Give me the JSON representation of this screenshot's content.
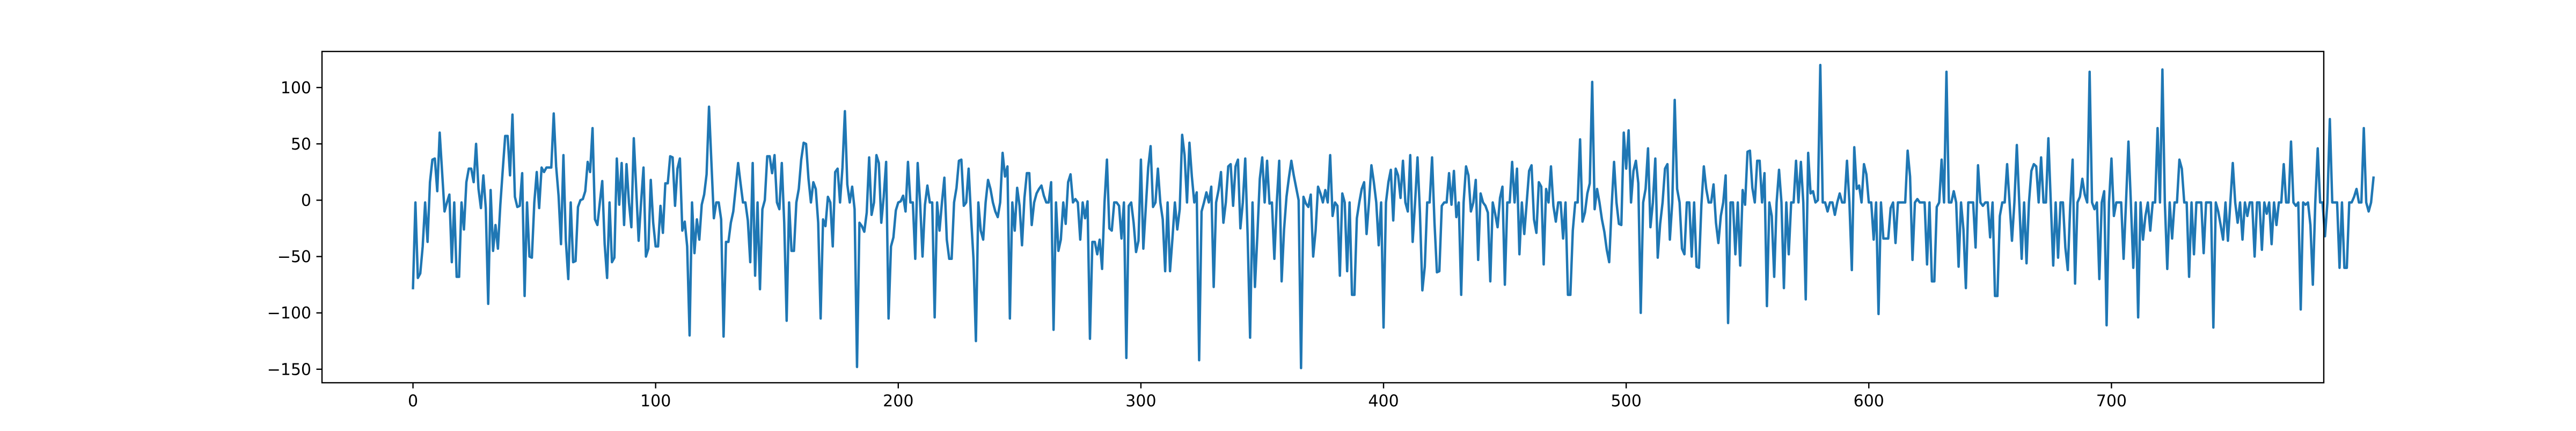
{
  "chart_data": {
    "type": "line",
    "title": "",
    "xlabel": "",
    "ylabel": "",
    "xlim": [
      -37.5,
      787.5
    ],
    "ylim": [
      -162,
      132
    ],
    "x_ticks": [
      0,
      100,
      200,
      300,
      400,
      500,
      600,
      700
    ],
    "y_ticks": [
      -150,
      -100,
      -50,
      0,
      50,
      100
    ],
    "grid": false,
    "legend": "none",
    "series": [
      {
        "color": "#1f77b4",
        "x_start": 0,
        "x_step": 1,
        "values": [
          -78,
          -2,
          -69,
          -65,
          -41,
          -2,
          -37,
          16,
          36,
          37,
          8,
          60,
          25,
          -10,
          -2,
          5,
          -55,
          -2,
          -68,
          -68,
          -2,
          -26,
          16,
          28,
          28,
          16,
          50,
          10,
          -7,
          22,
          -7,
          -92,
          9,
          -45,
          -22,
          -43,
          -4,
          27,
          57,
          57,
          22,
          76,
          3,
          -6,
          -5,
          24,
          -85,
          -2,
          -50,
          -51,
          -2,
          25,
          -7,
          29,
          25,
          29,
          29,
          29,
          77,
          30,
          4,
          -39,
          40,
          -36,
          -70,
          -2,
          -55,
          -54,
          -6,
          0,
          1,
          8,
          34,
          25,
          64,
          -17,
          -22,
          -2,
          17,
          -39,
          -69,
          -2,
          -55,
          -51,
          37,
          -4,
          33,
          -22,
          32,
          -2,
          -24,
          55,
          10,
          -36,
          -2,
          29,
          -50,
          -43,
          18,
          -20,
          -41,
          -41,
          -5,
          -29,
          15,
          15,
          39,
          38,
          -5,
          28,
          37,
          -27,
          -19,
          -41,
          -120,
          -2,
          -47,
          -17,
          -35,
          -4,
          5,
          23,
          83,
          33,
          -16,
          -2,
          -2,
          -17,
          -121,
          -37,
          -37,
          -20,
          -10,
          11,
          33,
          15,
          -2,
          -2,
          -18,
          -55,
          33,
          -67,
          -2,
          -79,
          -8,
          0,
          39,
          39,
          24,
          40,
          -2,
          -8,
          33,
          -20,
          -107,
          -2,
          -45,
          -45,
          -2,
          10,
          36,
          51,
          50,
          19,
          -2,
          16,
          10,
          -20,
          -105,
          -17,
          -23,
          3,
          -2,
          -41,
          25,
          28,
          -2,
          29,
          79,
          14,
          -2,
          12,
          -8,
          -148,
          -20,
          -23,
          -28,
          -11,
          38,
          -13,
          -2,
          40,
          33,
          -20,
          3,
          34,
          -105,
          -41,
          -33,
          -9,
          -2,
          -1,
          4,
          -10,
          34,
          -2,
          -2,
          -52,
          33,
          -2,
          -50,
          -4,
          13,
          -2,
          -2,
          -104,
          -2,
          -27,
          -2,
          20,
          -35,
          -52,
          -52,
          -2,
          11,
          35,
          36,
          -5,
          -2,
          28,
          -15,
          -52,
          -125,
          -2,
          -27,
          -35,
          -2,
          18,
          10,
          -2,
          -10,
          -15,
          -2,
          42,
          21,
          30,
          -105,
          -2,
          -27,
          11,
          -5,
          -40,
          2,
          24,
          24,
          -22,
          -2,
          6,
          10,
          13,
          4,
          -2,
          -2,
          16,
          -115,
          -2,
          -45,
          -35,
          -2,
          -21,
          16,
          23,
          -2,
          1,
          -2,
          -35,
          -2,
          -16,
          -1,
          -123,
          -37,
          -37,
          -48,
          -35,
          -61,
          -2,
          36,
          -25,
          -27,
          -2,
          -2,
          -5,
          -34,
          -2,
          -140,
          -5,
          -2,
          -20,
          -46,
          -36,
          36,
          -43,
          -7,
          29,
          48,
          -6,
          -2,
          28,
          -2,
          -17,
          -63,
          -2,
          -63,
          -34,
          -2,
          -26,
          -8,
          58,
          40,
          -2,
          51,
          21,
          -2,
          7,
          -142,
          -10,
          -2,
          7,
          -2,
          12,
          -77,
          -2,
          9,
          25,
          -20,
          -2,
          30,
          32,
          -5,
          30,
          36,
          -25,
          -2,
          37,
          -32,
          -122,
          -2,
          -77,
          -31,
          19,
          38,
          -2,
          35,
          -3,
          -2,
          -52,
          -2,
          35,
          -72,
          -26,
          3,
          20,
          35,
          22,
          11,
          0,
          -149,
          3,
          -3,
          -6,
          5,
          -50,
          -27,
          12,
          6,
          -2,
          9,
          -2,
          40,
          -14,
          -2,
          -5,
          -67,
          6,
          -2,
          -63,
          -2,
          -84,
          -84,
          -16,
          -2,
          10,
          16,
          -30,
          -2,
          31,
          16,
          -2,
          -40,
          -2,
          -113,
          -2,
          16,
          27,
          -18,
          28,
          22,
          2,
          35,
          -2,
          -10,
          40,
          -37,
          -2,
          38,
          -11,
          -80,
          -59,
          -2,
          -2,
          38,
          -20,
          -64,
          -63,
          -5,
          -2,
          -2,
          24,
          -4,
          26,
          -15,
          -2,
          -84,
          -2,
          30,
          22,
          -10,
          -2,
          18,
          -53,
          6,
          -2,
          -5,
          -11,
          -72,
          -2,
          -12,
          -24,
          2,
          12,
          -75,
          -2,
          -2,
          34,
          -2,
          28,
          -48,
          -2,
          -30,
          -2,
          26,
          31,
          -17,
          -29,
          16,
          12,
          -57,
          10,
          -2,
          30,
          -5,
          -19,
          -2,
          -2,
          -34,
          -2,
          -84,
          -84,
          -27,
          -2,
          -2,
          54,
          -19,
          -11,
          6,
          15,
          105,
          -8,
          10,
          -2,
          -17,
          -28,
          -44,
          -55,
          -6,
          34,
          -2,
          -21,
          -22,
          60,
          28,
          62,
          -2,
          26,
          35,
          15,
          -100,
          -2,
          10,
          46,
          -24,
          -2,
          37,
          -51,
          -21,
          -2,
          28,
          32,
          -35,
          -2,
          89,
          10,
          -2,
          -43,
          -48,
          -2,
          -2,
          -50,
          -2,
          -59,
          -60,
          -4,
          30,
          10,
          -2,
          -2,
          14,
          -20,
          -38,
          -14,
          -2,
          22,
          -109,
          -2,
          -2,
          -48,
          -2,
          -58,
          9,
          -4,
          43,
          44,
          11,
          -2,
          35,
          35,
          -2,
          24,
          -94,
          -2,
          -14,
          -68,
          -2,
          27,
          -2,
          -78,
          -2,
          -48,
          -2,
          -2,
          35,
          -2,
          34,
          -2,
          -88,
          42,
          6,
          8,
          -2,
          0,
          120,
          -2,
          -2,
          -10,
          -2,
          -2,
          -13,
          -2,
          6,
          -2,
          -2,
          35,
          -2,
          -62,
          47,
          10,
          13,
          -2,
          32,
          23,
          -2,
          -2,
          -35,
          -2,
          -101,
          -2,
          -34,
          -34,
          -34,
          -7,
          -2,
          -38,
          -2,
          -2,
          -2,
          -2,
          44,
          21,
          -53,
          -2,
          1,
          -2,
          -2,
          -2,
          -57,
          -2,
          -72,
          -72,
          -6,
          -2,
          36,
          -2,
          114,
          -2,
          -2,
          8,
          -2,
          -59,
          -2,
          -26,
          -78,
          -2,
          -2,
          -2,
          -42,
          31,
          -2,
          -5,
          -2,
          -2,
          -33,
          -2,
          -85,
          -85,
          -14,
          -2,
          -2,
          32,
          -2,
          -36,
          -2,
          49,
          -2,
          -52,
          -2,
          -56,
          -2,
          26,
          32,
          30,
          -2,
          38,
          -2,
          -2,
          55,
          -2,
          -58,
          -2,
          -51,
          -2,
          -2,
          -42,
          -62,
          -5,
          36,
          -74,
          -2,
          3,
          19,
          5,
          -2,
          114,
          -2,
          -8,
          -2,
          -70,
          -2,
          8,
          -111,
          -2,
          37,
          -14,
          -2,
          -2,
          -2,
          -52,
          -2,
          52,
          -2,
          -60,
          -2,
          -104,
          -2,
          -35,
          -14,
          -2,
          -27,
          -2,
          -2,
          64,
          -2,
          116,
          -2,
          -61,
          -2,
          -34,
          -2,
          -2,
          36,
          28,
          -2,
          -2,
          -68,
          -2,
          -48,
          -2,
          -2,
          -2,
          -47,
          -2,
          -2,
          -2,
          -113,
          -2,
          -10,
          -22,
          -35,
          -2,
          -36,
          -2,
          33,
          -2,
          -20,
          -2,
          -35,
          -2,
          -14,
          -2,
          -2,
          -50,
          -2,
          -2,
          -44,
          -2,
          -12,
          -2,
          -39,
          -2,
          -22,
          -2,
          -2,
          32,
          -2,
          -2,
          52,
          -2,
          -5,
          -2,
          -97,
          -2,
          -4,
          -2,
          -22,
          -75,
          -2,
          46,
          -2,
          -2,
          -32,
          -2,
          72,
          -2,
          -2,
          -2,
          -60,
          -2,
          -60,
          -60,
          -2,
          -2,
          3,
          10,
          -2,
          -2,
          64,
          -2,
          -10,
          -2,
          20
        ]
      }
    ]
  }
}
